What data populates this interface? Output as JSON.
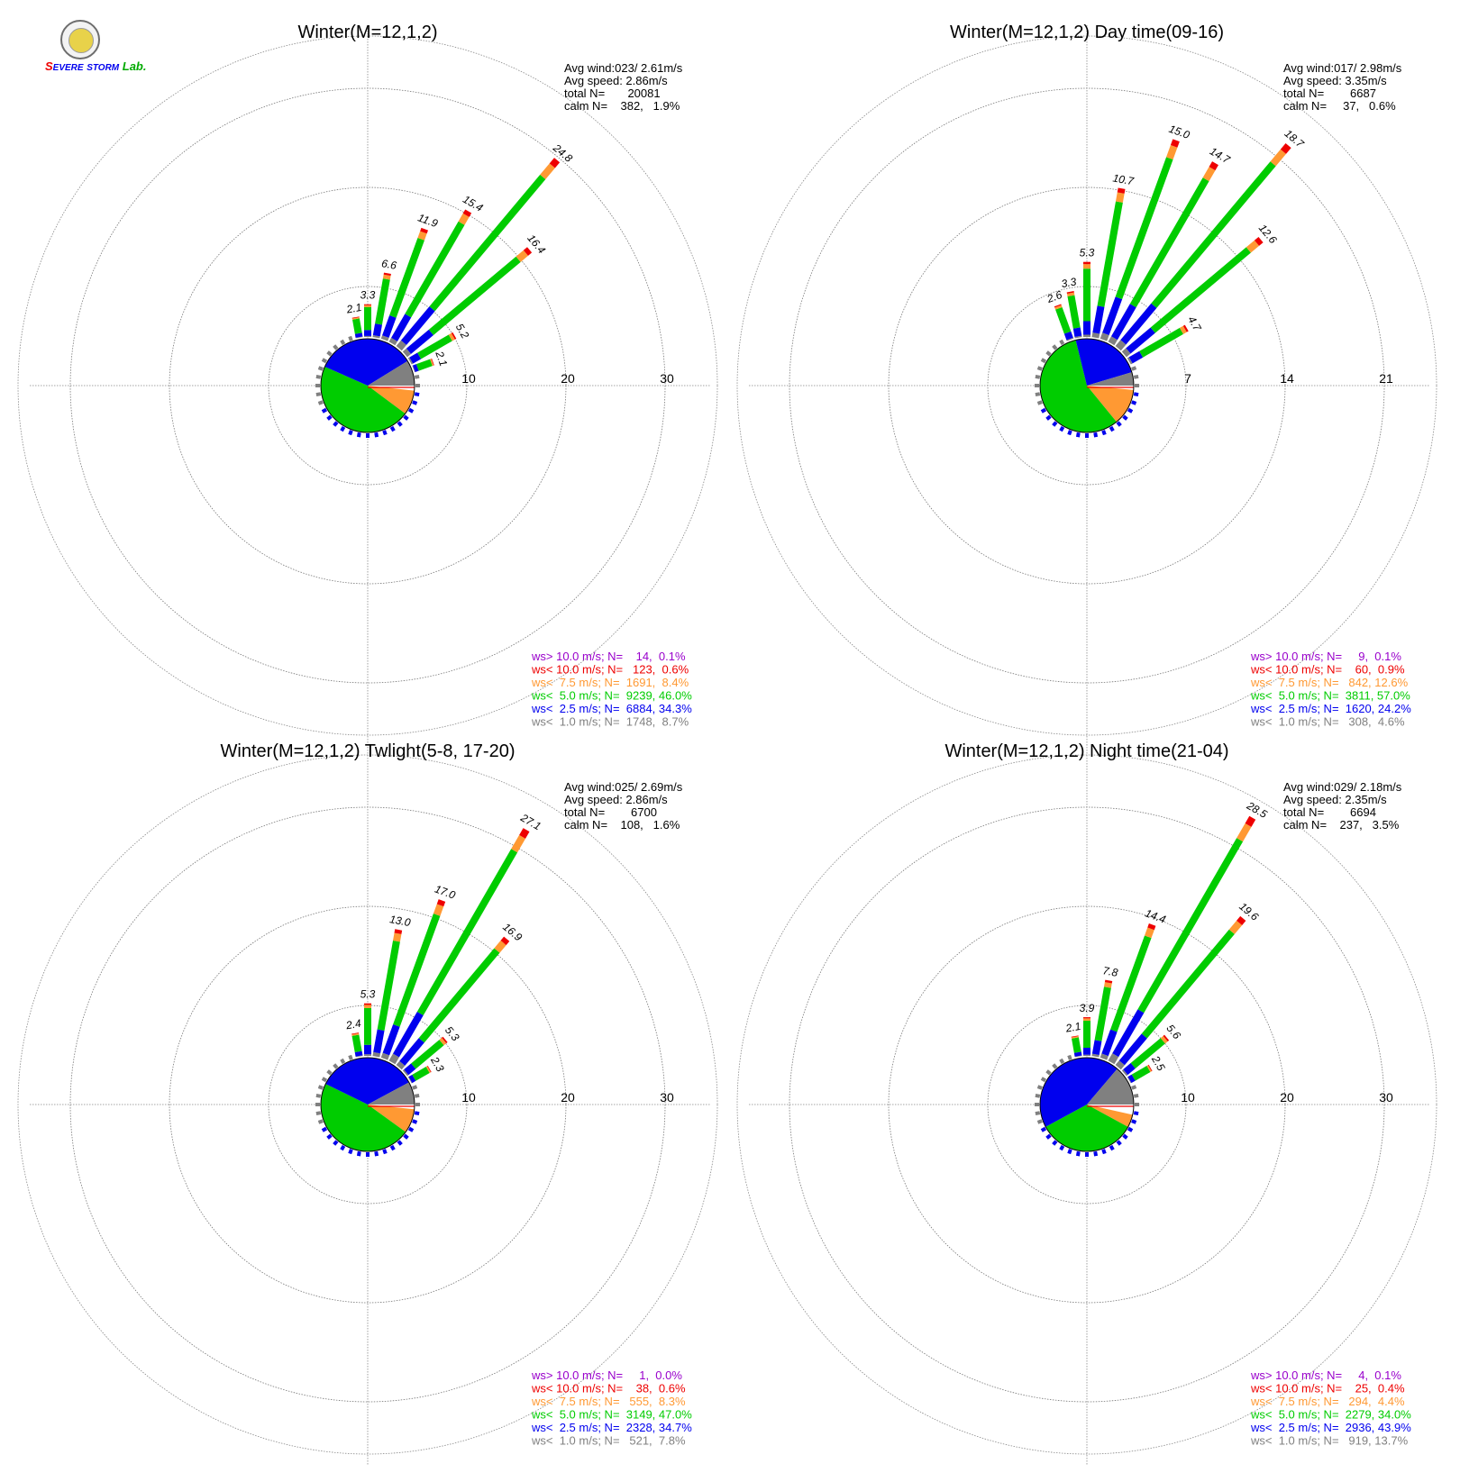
{
  "logo": {
    "text": "SEVERE STORM Lab."
  },
  "colors": {
    "gt10": "#9900cc",
    "lt10": "#ee0000",
    "lt75": "#ff9933",
    "lt50": "#00cc00",
    "lt25": "#0000ee",
    "lt10w": "#808080"
  },
  "chart_data": [
    {
      "type": "windrose",
      "title": "Winter(M=12,1,2)",
      "rings": [
        "10",
        "20",
        "30"
      ],
      "rmax": 30,
      "stats": [
        "Avg wind:023/ 2.61m/s",
        "Avg speed: 2.86m/s",
        "total N=       20081",
        "calm N=    382,   1.9%"
      ],
      "legend": [
        {
          "text": "ws> 10.0 m/s; N=    14,  0.1%",
          "color": "#9900cc"
        },
        {
          "text": "ws< 10.0 m/s; N=   123,  0.6%",
          "color": "#ee0000"
        },
        {
          "text": "ws<  7.5 m/s; N=  1691,  8.4%",
          "color": "#ff9933"
        },
        {
          "text": "ws<  5.0 m/s; N=  9239, 46.0%",
          "color": "#00cc00"
        },
        {
          "text": "ws<  2.5 m/s; N=  6884, 34.3%",
          "color": "#0000ee"
        },
        {
          "text": "ws<  1.0 m/s; N=  1748,  8.7%",
          "color": "#808080"
        }
      ],
      "bars": [
        {
          "dir": 350,
          "total": 2.1,
          "label": "2.1"
        },
        {
          "dir": 0,
          "total": 3.3,
          "label": "3.3"
        },
        {
          "dir": 10,
          "total": 6.6,
          "label": "6.6"
        },
        {
          "dir": 20,
          "total": 11.9,
          "label": "11.9"
        },
        {
          "dir": 30,
          "total": 15.4,
          "label": "15.4"
        },
        {
          "dir": 40,
          "total": 24.8,
          "label": "24.8"
        },
        {
          "dir": 50,
          "total": 16.4,
          "label": "16.4"
        },
        {
          "dir": 60,
          "total": 5.2,
          "label": "5.2"
        },
        {
          "dir": 70,
          "total": 2.1,
          "label": "2.1"
        }
      ],
      "pie": [
        0.017,
        0.084,
        0.46,
        0.343,
        0.087
      ]
    },
    {
      "type": "windrose",
      "title": "Winter(M=12,1,2) Day time(09-16)",
      "rings": [
        "7",
        "14",
        "21"
      ],
      "rmax": 21,
      "stats": [
        "Avg wind:017/ 2.98m/s",
        "Avg speed: 3.35m/s",
        "total N=        6687",
        "calm N=     37,   0.6%"
      ],
      "legend": [
        {
          "text": "ws> 10.0 m/s; N=     9,  0.1%",
          "color": "#9900cc"
        },
        {
          "text": "ws< 10.0 m/s; N=    60,  0.9%",
          "color": "#ee0000"
        },
        {
          "text": "ws<  7.5 m/s; N=   842, 12.6%",
          "color": "#ff9933"
        },
        {
          "text": "ws<  5.0 m/s; N=  3811, 57.0%",
          "color": "#00cc00"
        },
        {
          "text": "ws<  2.5 m/s; N=  1620, 24.2%",
          "color": "#0000ee"
        },
        {
          "text": "ws<  1.0 m/s; N=   308,  4.6%",
          "color": "#808080"
        }
      ],
      "bars": [
        {
          "dir": 340,
          "total": 2.6,
          "label": "2.6"
        },
        {
          "dir": 350,
          "total": 3.3,
          "label": "3.3"
        },
        {
          "dir": 0,
          "total": 5.3,
          "label": "5.3"
        },
        {
          "dir": 10,
          "total": 10.7,
          "label": "10.7"
        },
        {
          "dir": 20,
          "total": 15.0,
          "label": "15.0"
        },
        {
          "dir": 30,
          "total": 14.7,
          "label": "14.7"
        },
        {
          "dir": 40,
          "total": 18.7,
          "label": "18.7"
        },
        {
          "dir": 50,
          "total": 12.6,
          "label": "12.6"
        },
        {
          "dir": 60,
          "total": 4.7,
          "label": "4.7"
        }
      ],
      "pie": [
        0.015,
        0.126,
        0.57,
        0.242,
        0.046
      ]
    },
    {
      "type": "windrose",
      "title": "Winter(M=12,1,2) Twlight(5-8, 17-20)",
      "rings": [
        "10",
        "20",
        "30"
      ],
      "rmax": 30,
      "stats": [
        "Avg wind:025/ 2.69m/s",
        "Avg speed: 2.86m/s",
        "total N=        6700",
        "calm N=    108,   1.6%"
      ],
      "legend": [
        {
          "text": "ws> 10.0 m/s; N=     1,  0.0%",
          "color": "#9900cc"
        },
        {
          "text": "ws< 10.0 m/s; N=    38,  0.6%",
          "color": "#ee0000"
        },
        {
          "text": "ws<  7.5 m/s; N=   555,  8.3%",
          "color": "#ff9933"
        },
        {
          "text": "ws<  5.0 m/s; N=  3149, 47.0%",
          "color": "#00cc00"
        },
        {
          "text": "ws<  2.5 m/s; N=  2328, 34.7%",
          "color": "#0000ee"
        },
        {
          "text": "ws<  1.0 m/s; N=   521,  7.8%",
          "color": "#808080"
        }
      ],
      "bars": [
        {
          "dir": 350,
          "total": 2.4,
          "label": "2.4"
        },
        {
          "dir": 0,
          "total": 5.3,
          "label": "5.3"
        },
        {
          "dir": 10,
          "total": 13.0,
          "label": "13.0"
        },
        {
          "dir": 20,
          "total": 17.0,
          "label": "17.0"
        },
        {
          "dir": 30,
          "total": 27.1,
          "label": "27.1"
        },
        {
          "dir": 40,
          "total": 16.9,
          "label": "16.9"
        },
        {
          "dir": 50,
          "total": 5.3,
          "label": "5.3"
        },
        {
          "dir": 60,
          "total": 2.3,
          "label": "2.3"
        }
      ],
      "pie": [
        0.016,
        0.083,
        0.47,
        0.347,
        0.078
      ]
    },
    {
      "type": "windrose",
      "title": "Winter(M=12,1,2) Night time(21-04)",
      "rings": [
        "10",
        "20",
        "30"
      ],
      "rmax": 30,
      "stats": [
        "Avg wind:029/ 2.18m/s",
        "Avg speed: 2.35m/s",
        "total N=        6694",
        "calm N=    237,   3.5%"
      ],
      "legend": [
        {
          "text": "ws> 10.0 m/s; N=     4,  0.1%",
          "color": "#9900cc"
        },
        {
          "text": "ws< 10.0 m/s; N=    25,  0.4%",
          "color": "#ee0000"
        },
        {
          "text": "ws<  7.5 m/s; N=   294,  4.4%",
          "color": "#ff9933"
        },
        {
          "text": "ws<  5.0 m/s; N=  2279, 34.0%",
          "color": "#00cc00"
        },
        {
          "text": "ws<  2.5 m/s; N=  2936, 43.9%",
          "color": "#0000ee"
        },
        {
          "text": "ws<  1.0 m/s; N=   919, 13.7%",
          "color": "#808080"
        }
      ],
      "bars": [
        {
          "dir": 350,
          "total": 2.1,
          "label": "2.1"
        },
        {
          "dir": 0,
          "total": 3.9,
          "label": "3.9"
        },
        {
          "dir": 10,
          "total": 7.8,
          "label": "7.8"
        },
        {
          "dir": 20,
          "total": 14.4,
          "label": "14.4"
        },
        {
          "dir": 30,
          "total": 28.5,
          "label": "28.5"
        },
        {
          "dir": 40,
          "total": 19.6,
          "label": "19.6"
        },
        {
          "dir": 50,
          "total": 5.6,
          "label": "5.6"
        },
        {
          "dir": 60,
          "total": 2.5,
          "label": "2.5"
        }
      ],
      "pie": [
        0.035,
        0.044,
        0.34,
        0.439,
        0.137
      ]
    }
  ]
}
